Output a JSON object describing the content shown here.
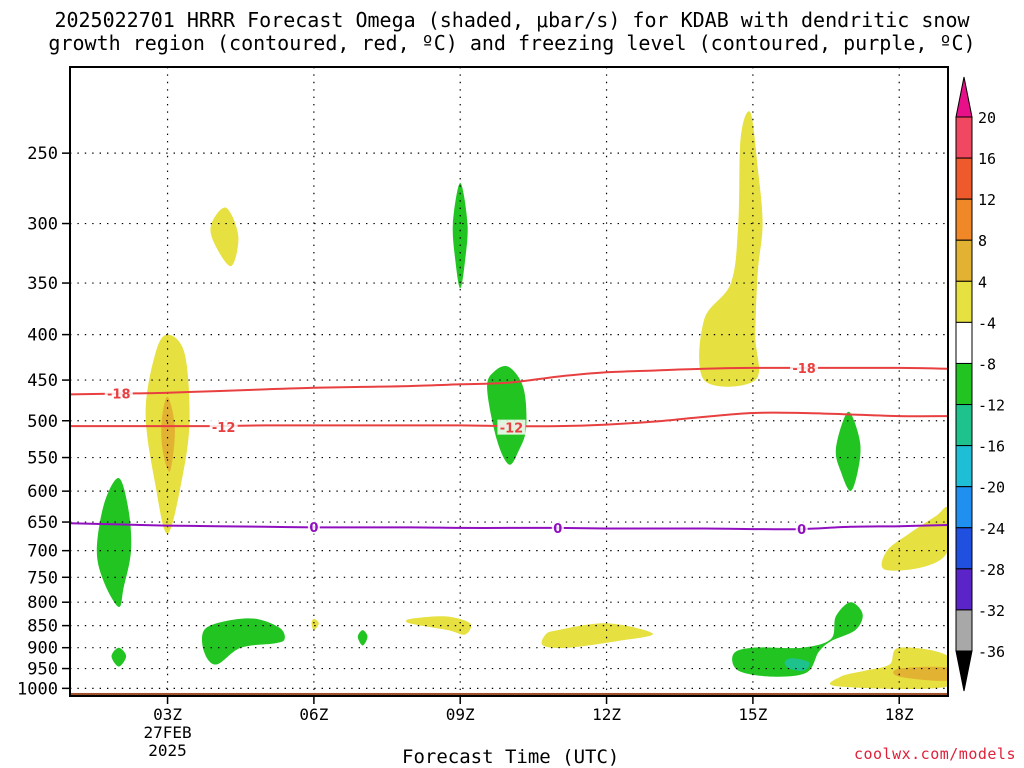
{
  "title": {
    "line1": "2025022701 HRRR Forecast Omega (shaded, μbar/s) for KDAB with dendritic snow",
    "line2": "growth region (contoured, red, ºC) and freezing level (contoured, purple, ºC)"
  },
  "credit": "coolwx.com/models",
  "chart_data": {
    "type": "heatmap",
    "xlabel": "Forecast Time (UTC)",
    "ylabel": "",
    "x_ticks": [
      {
        "t": 3,
        "label": "03Z",
        "sub": [
          "27FEB",
          "2025"
        ]
      },
      {
        "t": 6,
        "label": "06Z"
      },
      {
        "t": 9,
        "label": "09Z"
      },
      {
        "t": 12,
        "label": "12Z"
      },
      {
        "t": 15,
        "label": "15Z"
      },
      {
        "t": 18,
        "label": "18Z"
      }
    ],
    "xlim": [
      1,
      19
    ],
    "y_ticks": [
      250,
      300,
      350,
      400,
      450,
      500,
      550,
      600,
      650,
      700,
      750,
      800,
      850,
      900,
      950,
      1000
    ],
    "ylim_pressure": [
      1020,
      200
    ],
    "grid": true,
    "colorbar": {
      "units": "μbar/s",
      "labels": [
        "20",
        "16",
        "12",
        "8",
        "4",
        "-4",
        "-8",
        "-12",
        "-16",
        "-20",
        "-24",
        "-28",
        "-32",
        "-36"
      ],
      "colors": [
        "#f04860",
        "#ee5a2c",
        "#f08828",
        "#e2b232",
        "#e6e040",
        "#ffffff",
        "#22c422",
        "#1ec28c",
        "#1ebfd6",
        "#2090f0",
        "#2050e0",
        "#5a24c8",
        "#9a10c8",
        "#a8a8a8"
      ],
      "top_arrow_color": "#e81088",
      "bottom_arrow_color": "#000000"
    },
    "omega_regions": [
      {
        "name": "yellow 03Z upper",
        "color": "#e6e040",
        "pts": [
          [
            3.0,
            400
          ],
          [
            3.35,
            420
          ],
          [
            3.45,
            500
          ],
          [
            3.3,
            580
          ],
          [
            3.0,
            670
          ],
          [
            2.75,
            590
          ],
          [
            2.55,
            490
          ],
          [
            2.75,
            420
          ]
        ]
      },
      {
        "name": "orange 03Z core",
        "color": "#e2b232",
        "pts": [
          [
            3.0,
            470
          ],
          [
            3.15,
            510
          ],
          [
            3.05,
            570
          ],
          [
            2.9,
            540
          ],
          [
            2.88,
            500
          ]
        ]
      },
      {
        "name": "yellow 04Z 300hPa",
        "color": "#e6e040",
        "pts": [
          [
            4.2,
            288
          ],
          [
            4.45,
            310
          ],
          [
            4.3,
            335
          ],
          [
            3.95,
            315
          ],
          [
            3.9,
            300
          ]
        ]
      },
      {
        "name": "green 09Z 300hPa",
        "color": "#22c422",
        "pts": [
          [
            9.0,
            270
          ],
          [
            9.15,
            300
          ],
          [
            9.1,
            330
          ],
          [
            9.0,
            355
          ],
          [
            8.9,
            330
          ],
          [
            8.85,
            300
          ]
        ]
      },
      {
        "name": "green 10Z 480hPa",
        "color": "#22c422",
        "pts": [
          [
            10.0,
            435
          ],
          [
            10.3,
            460
          ],
          [
            10.35,
            510
          ],
          [
            10.2,
            540
          ],
          [
            10.0,
            560
          ],
          [
            9.75,
            525
          ],
          [
            9.55,
            460
          ],
          [
            9.7,
            440
          ]
        ]
      },
      {
        "name": "yellow 15Z upper",
        "color": "#e6e040",
        "pts": [
          [
            14.95,
            225
          ],
          [
            15.1,
            260
          ],
          [
            15.2,
            300
          ],
          [
            15.1,
            340
          ],
          [
            15.05,
            400
          ],
          [
            15.05,
            450
          ],
          [
            14.0,
            450
          ],
          [
            14.0,
            385
          ],
          [
            14.55,
            350
          ],
          [
            14.7,
            300
          ],
          [
            14.75,
            240
          ]
        ]
      },
      {
        "name": "green 17Z mid",
        "color": "#22c422",
        "pts": [
          [
            17.0,
            490
          ],
          [
            17.2,
            530
          ],
          [
            17.15,
            570
          ],
          [
            17.0,
            600
          ],
          [
            16.8,
            570
          ],
          [
            16.7,
            540
          ],
          [
            16.85,
            500
          ]
        ]
      },
      {
        "name": "green 02Z low",
        "color": "#22c422",
        "pts": [
          [
            2.0,
            580
          ],
          [
            2.2,
            630
          ],
          [
            2.25,
            700
          ],
          [
            2.1,
            770
          ],
          [
            2.0,
            810
          ],
          [
            1.7,
            760
          ],
          [
            1.55,
            700
          ],
          [
            1.7,
            620
          ]
        ]
      },
      {
        "name": "green 02Z 920",
        "color": "#22c422",
        "pts": [
          [
            2.0,
            900
          ],
          [
            2.15,
            920
          ],
          [
            2.0,
            945
          ],
          [
            1.85,
            920
          ]
        ]
      },
      {
        "name": "green 04Z 870",
        "color": "#22c422",
        "pts": [
          [
            4.2,
            840
          ],
          [
            4.8,
            835
          ],
          [
            5.3,
            855
          ],
          [
            5.4,
            880
          ],
          [
            5.2,
            890
          ],
          [
            4.5,
            900
          ],
          [
            4.0,
            940
          ],
          [
            3.75,
            910
          ],
          [
            3.75,
            860
          ]
        ]
      },
      {
        "name": "yellow 06Z speck",
        "color": "#e6e040",
        "pts": [
          [
            6.0,
            835
          ],
          [
            6.1,
            845
          ],
          [
            6.0,
            860
          ],
          [
            5.95,
            845
          ]
        ]
      },
      {
        "name": "green 07Z speck",
        "color": "#22c422",
        "pts": [
          [
            7.0,
            860
          ],
          [
            7.1,
            875
          ],
          [
            7.0,
            895
          ],
          [
            6.9,
            875
          ]
        ]
      },
      {
        "name": "yellow 09Z 845",
        "color": "#e6e040",
        "pts": [
          [
            8.0,
            835
          ],
          [
            8.7,
            830
          ],
          [
            9.2,
            845
          ],
          [
            9.1,
            870
          ],
          [
            8.75,
            860
          ],
          [
            8.1,
            848
          ],
          [
            7.9,
            842
          ]
        ]
      },
      {
        "name": "yellow 12Z 870",
        "color": "#e6e040",
        "pts": [
          [
            11.0,
            860
          ],
          [
            12.0,
            845
          ],
          [
            12.95,
            868
          ],
          [
            12.2,
            885
          ],
          [
            11.2,
            900
          ],
          [
            10.7,
            895
          ],
          [
            10.75,
            870
          ]
        ]
      },
      {
        "name": "green 16Z 930",
        "color": "#22c422",
        "pts": [
          [
            17.0,
            800
          ],
          [
            17.25,
            825
          ],
          [
            17.1,
            860
          ],
          [
            16.6,
            885
          ],
          [
            16.35,
            910
          ],
          [
            16.1,
            960
          ],
          [
            15.4,
            970
          ],
          [
            14.7,
            955
          ],
          [
            14.6,
            915
          ],
          [
            15.0,
            900
          ],
          [
            16.0,
            900
          ],
          [
            16.6,
            880
          ],
          [
            16.7,
            830
          ]
        ]
      },
      {
        "name": "teal 16Z",
        "color": "#1ec28c",
        "pts": [
          [
            15.8,
            925
          ],
          [
            16.15,
            935
          ],
          [
            16.05,
            955
          ],
          [
            15.75,
            950
          ],
          [
            15.65,
            935
          ]
        ]
      },
      {
        "name": "yellow 18Z 950",
        "color": "#e6e040",
        "pts": [
          [
            18.0,
            900
          ],
          [
            19.0,
            920
          ],
          [
            19.0,
            995
          ],
          [
            16.75,
            995
          ],
          [
            16.8,
            970
          ],
          [
            17.3,
            955
          ],
          [
            17.8,
            940
          ]
        ]
      },
      {
        "name": "orange 18Z 965",
        "color": "#e2b232",
        "pts": [
          [
            18.0,
            950
          ],
          [
            19.0,
            948
          ],
          [
            19.0,
            980
          ],
          [
            18.0,
            970
          ]
        ]
      },
      {
        "name": "yellow 19Z 680",
        "color": "#e6e040",
        "pts": [
          [
            19.0,
            628
          ],
          [
            19.0,
            700
          ],
          [
            18.5,
            730
          ],
          [
            17.7,
            735
          ],
          [
            17.75,
            700
          ],
          [
            18.2,
            670
          ],
          [
            18.75,
            640
          ]
        ]
      }
    ],
    "isotherms": [
      {
        "value": -18,
        "color": "#e84040",
        "label": "-18",
        "label_at": [
          [
            2.0,
            466
          ],
          [
            16.05,
            436
          ]
        ],
        "pts": [
          [
            1,
            467
          ],
          [
            2,
            466
          ],
          [
            3,
            465
          ],
          [
            4,
            463
          ],
          [
            5,
            461
          ],
          [
            6,
            459
          ],
          [
            7,
            458
          ],
          [
            8,
            457
          ],
          [
            9,
            455
          ],
          [
            10,
            453
          ],
          [
            11,
            446
          ],
          [
            12,
            441
          ],
          [
            13,
            439
          ],
          [
            14,
            437
          ],
          [
            15,
            436
          ],
          [
            16,
            436
          ],
          [
            17,
            436
          ],
          [
            18,
            436
          ],
          [
            19,
            437
          ]
        ]
      },
      {
        "value": -12,
        "color": "#e84040",
        "label": "-12",
        "label_at": [
          [
            4.15,
            508
          ],
          [
            10.05,
            509
          ]
        ],
        "pts": [
          [
            1,
            507
          ],
          [
            2,
            507
          ],
          [
            3,
            507
          ],
          [
            4,
            507
          ],
          [
            5,
            506
          ],
          [
            6,
            506
          ],
          [
            7,
            506
          ],
          [
            8,
            506
          ],
          [
            9,
            506
          ],
          [
            10,
            507
          ],
          [
            11,
            507
          ],
          [
            12,
            505
          ],
          [
            13,
            501
          ],
          [
            14,
            495
          ],
          [
            15,
            490
          ],
          [
            16,
            490
          ],
          [
            17,
            492
          ],
          [
            18,
            494
          ],
          [
            19,
            494
          ]
        ]
      },
      {
        "value": 0,
        "color": "#9010c0",
        "label": "0",
        "label_at": [
          [
            6.0,
            658
          ],
          [
            11.0,
            660
          ],
          [
            16.0,
            662
          ]
        ],
        "pts": [
          [
            1,
            652
          ],
          [
            2,
            654
          ],
          [
            3,
            656
          ],
          [
            4,
            657
          ],
          [
            5,
            658
          ],
          [
            6,
            659
          ],
          [
            7,
            659
          ],
          [
            8,
            659
          ],
          [
            9,
            660
          ],
          [
            10,
            660
          ],
          [
            11,
            660
          ],
          [
            12,
            661
          ],
          [
            13,
            661
          ],
          [
            14,
            661
          ],
          [
            15,
            662
          ],
          [
            16,
            662
          ],
          [
            17,
            658
          ],
          [
            18,
            657
          ],
          [
            19,
            655
          ]
        ]
      }
    ],
    "terrain": {
      "color": "#a0522d",
      "top_pressure": 1012
    }
  }
}
